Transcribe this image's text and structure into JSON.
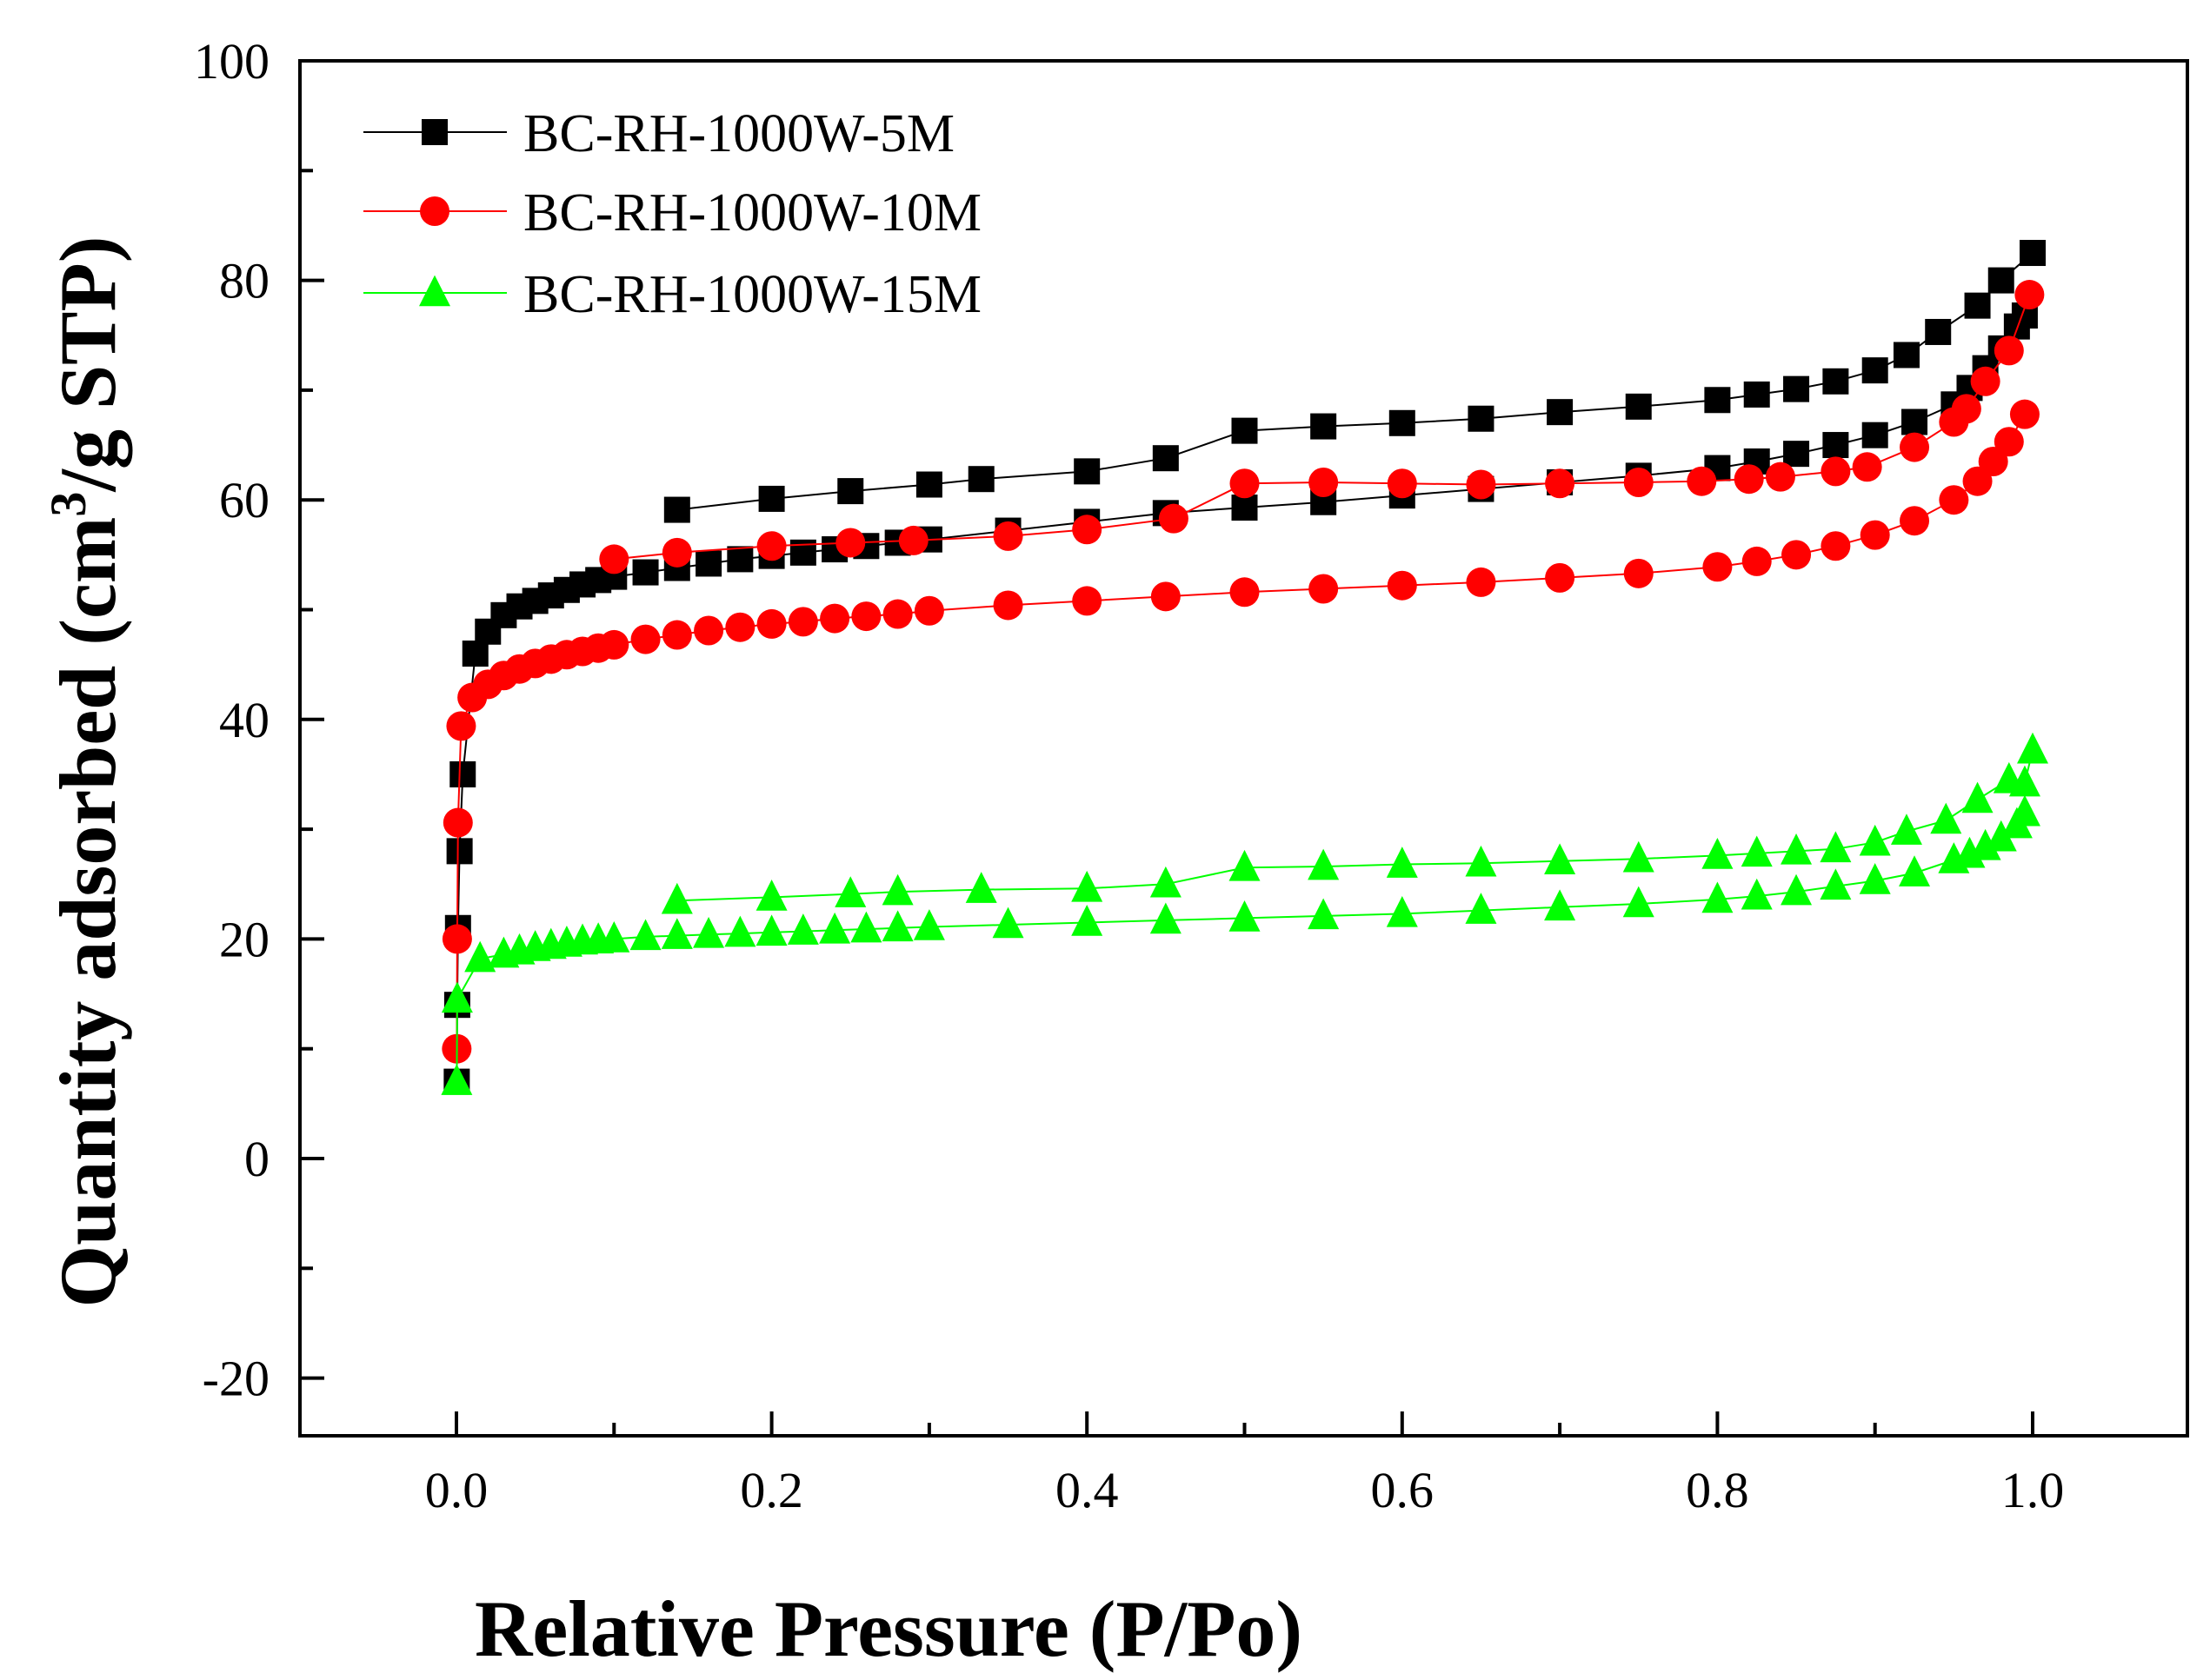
{
  "chart_data": {
    "type": "scatter",
    "xlabel": "Relative Pressure (P/Po)",
    "ylabel_parts": [
      "Quantity adsorbed (cm",
      "3",
      "/g STP)"
    ],
    "xlim": [
      -0.2,
      2.0
    ],
    "ylim": [
      -25,
      100
    ],
    "x_ticks": [
      0.0,
      0.2,
      0.4,
      0.6,
      0.8,
      1.0
    ],
    "y_ticks": [
      -20,
      0,
      20,
      40,
      60,
      80,
      100
    ],
    "x_tick_labels": [
      "0.0",
      "0.2",
      "0.4",
      "0.6",
      "0.8",
      "1.0"
    ],
    "y_tick_labels": [
      "-20",
      "0",
      "20",
      "40",
      "60",
      "80",
      "100"
    ],
    "legend_position": "top-left",
    "grid": false,
    "series": [
      {
        "name": "BC-RH-1000W-5M",
        "color": "#000000",
        "marker": "square",
        "adsorption": {
          "x": [
            0.0002,
            0.0005,
            0.001,
            0.002,
            0.004,
            0.012,
            0.02,
            0.03,
            0.04,
            0.05,
            0.06,
            0.07,
            0.08,
            0.09,
            0.1,
            0.12,
            0.14,
            0.16,
            0.18,
            0.2,
            0.22,
            0.24,
            0.26,
            0.28,
            0.3,
            0.35,
            0.4,
            0.45,
            0.5,
            0.55,
            0.6,
            0.65,
            0.7,
            0.75,
            0.8,
            0.825,
            0.85,
            0.875,
            0.9,
            0.925,
            0.95,
            0.96,
            0.97,
            0.98,
            0.99,
            0.995
          ],
          "y": [
            7,
            14,
            21,
            28,
            35,
            46,
            48,
            49.5,
            50.3,
            50.8,
            51.3,
            51.8,
            52.3,
            52.7,
            53,
            53.4,
            53.8,
            54.2,
            54.6,
            54.9,
            55.2,
            55.5,
            55.8,
            56.1,
            56.4,
            57.2,
            58,
            58.8,
            59.3,
            59.8,
            60.4,
            61,
            61.6,
            62.2,
            62.9,
            63.5,
            64.2,
            65,
            65.9,
            67.1,
            68.7,
            70.2,
            72,
            73.8,
            75.8,
            76.8
          ]
        },
        "desorption": {
          "x": [
            1.0,
            0.98,
            0.965,
            0.94,
            0.92,
            0.9,
            0.875,
            0.85,
            0.825,
            0.8,
            0.75,
            0.7,
            0.65,
            0.6,
            0.55,
            0.5,
            0.45,
            0.4,
            0.333,
            0.3,
            0.25,
            0.2,
            0.14
          ],
          "y": [
            82.5,
            80,
            77.7,
            75.3,
            73.2,
            71.8,
            70.8,
            70.1,
            69.6,
            69.1,
            68.5,
            68,
            67.4,
            67,
            66.7,
            66.3,
            63.8,
            62.6,
            61.9,
            61.4,
            60.8,
            60.1,
            59.1
          ]
        }
      },
      {
        "name": "BC-RH-1000W-10M",
        "color": "#ff0000",
        "marker": "circle",
        "adsorption": {
          "x": [
            0.0002,
            0.0005,
            0.001,
            0.003,
            0.01,
            0.02,
            0.03,
            0.04,
            0.05,
            0.06,
            0.07,
            0.08,
            0.09,
            0.1,
            0.12,
            0.14,
            0.16,
            0.18,
            0.2,
            0.22,
            0.24,
            0.26,
            0.28,
            0.3,
            0.35,
            0.4,
            0.45,
            0.5,
            0.55,
            0.6,
            0.65,
            0.7,
            0.75,
            0.8,
            0.825,
            0.85,
            0.875,
            0.9,
            0.925,
            0.95,
            0.965,
            0.975,
            0.985,
            0.995
          ],
          "y": [
            10,
            20,
            30.6,
            39.4,
            42,
            43.2,
            44,
            44.6,
            45.1,
            45.5,
            45.9,
            46.2,
            46.5,
            46.8,
            47.3,
            47.7,
            48.1,
            48.4,
            48.7,
            48.9,
            49.2,
            49.4,
            49.6,
            49.9,
            50.4,
            50.8,
            51.2,
            51.6,
            51.9,
            52.2,
            52.5,
            52.9,
            53.3,
            53.9,
            54.4,
            55,
            55.8,
            56.8,
            58.1,
            60,
            61.7,
            63.5,
            65.3,
            67.8
          ]
        },
        "desorption": {
          "x": [
            0.998,
            0.985,
            0.97,
            0.958,
            0.95,
            0.925,
            0.895,
            0.875,
            0.84,
            0.82,
            0.79,
            0.75,
            0.7,
            0.65,
            0.6,
            0.55,
            0.5,
            0.455,
            0.4,
            0.35,
            0.29,
            0.25,
            0.2,
            0.14,
            0.1
          ],
          "y": [
            78.7,
            73.6,
            70.8,
            68.3,
            67.1,
            64.8,
            63,
            62.6,
            62.1,
            61.9,
            61.7,
            61.6,
            61.5,
            61.4,
            61.5,
            61.6,
            61.5,
            58.3,
            57.3,
            56.7,
            56.3,
            56.1,
            55.8,
            55.2,
            54.6
          ]
        }
      },
      {
        "name": "BC-RH-1000W-15M",
        "color": "#00ff00",
        "marker": "triangle",
        "adsorption": {
          "x": [
            0.0002,
            0.0005,
            0.015,
            0.03,
            0.04,
            0.05,
            0.06,
            0.07,
            0.08,
            0.09,
            0.1,
            0.12,
            0.14,
            0.16,
            0.18,
            0.2,
            0.22,
            0.24,
            0.26,
            0.28,
            0.3,
            0.35,
            0.4,
            0.45,
            0.5,
            0.55,
            0.6,
            0.65,
            0.7,
            0.75,
            0.8,
            0.825,
            0.85,
            0.875,
            0.9,
            0.925,
            0.95,
            0.96,
            0.97,
            0.98,
            0.99,
            0.995
          ],
          "y": [
            7,
            14.5,
            18.2,
            18.6,
            18.9,
            19.2,
            19.4,
            19.6,
            19.8,
            19.9,
            20,
            20.2,
            20.3,
            20.4,
            20.5,
            20.6,
            20.7,
            20.8,
            20.9,
            21,
            21.1,
            21.3,
            21.5,
            21.7,
            21.9,
            22.1,
            22.3,
            22.6,
            22.9,
            23.2,
            23.6,
            23.9,
            24.3,
            24.8,
            25.3,
            26,
            27.2,
            27.7,
            28.4,
            29.2,
            30.4,
            31.5
          ]
        },
        "desorption": {
          "x": [
            1.0,
            0.995,
            0.985,
            0.965,
            0.945,
            0.92,
            0.9,
            0.875,
            0.85,
            0.825,
            0.8,
            0.75,
            0.7,
            0.65,
            0.6,
            0.55,
            0.5,
            0.45,
            0.4,
            0.333,
            0.28,
            0.25,
            0.2,
            0.14
          ],
          "y": [
            37.2,
            34.2,
            34.5,
            32.7,
            30.8,
            29.8,
            28.8,
            28.2,
            28,
            27.8,
            27.6,
            27.3,
            27.1,
            26.9,
            26.8,
            26.6,
            26.5,
            25,
            24.6,
            24.5,
            24.3,
            24.1,
            23.8,
            23.5
          ]
        }
      }
    ]
  }
}
